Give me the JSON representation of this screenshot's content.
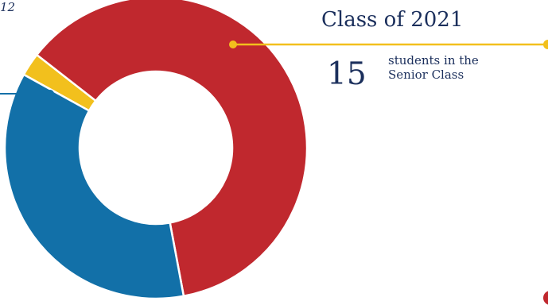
{
  "chart_data": {
    "type": "pie",
    "donut": true,
    "categories": [
      "Gold",
      "Red",
      "Blue"
    ],
    "values": [
      2.5,
      61.5,
      36
    ],
    "colors": [
      "#f2c01d",
      "#c0282e",
      "#1270a8"
    ],
    "legend": "none"
  },
  "header": {
    "title": "Class of 2021",
    "count": "15",
    "caption_line1": "students in the",
    "caption_line2": "Senior Class"
  },
  "corner_label": "12",
  "colors": {
    "text": "#1b2f5c",
    "leader_gold": "#f2c01d",
    "leader_blue": "#1270a8",
    "edge_red": "#c0282e"
  }
}
